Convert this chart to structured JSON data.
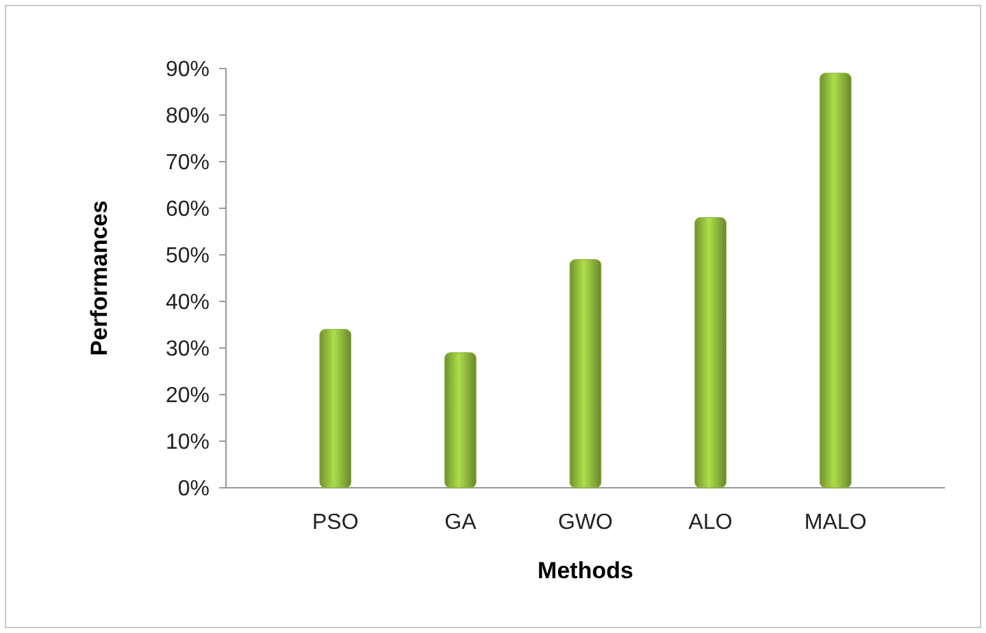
{
  "chart_data": {
    "type": "bar",
    "xlabel": "Methods",
    "ylabel": "Performances",
    "categories": [
      "PSO",
      "GA",
      "GWO",
      "ALO",
      "MALO"
    ],
    "values": [
      34,
      29,
      49,
      58,
      89
    ],
    "color": "#8cb33c",
    "ylim": [
      0,
      90
    ],
    "yticks": [
      {
        "value": 0,
        "label": "0%"
      },
      {
        "value": 10,
        "label": "10%"
      },
      {
        "value": 20,
        "label": "20%"
      },
      {
        "value": 30,
        "label": "30%"
      },
      {
        "value": 40,
        "label": "40%"
      },
      {
        "value": 50,
        "label": "50%"
      },
      {
        "value": 60,
        "label": "60%"
      },
      {
        "value": 70,
        "label": "70%"
      },
      {
        "value": 80,
        "label": "80%"
      },
      {
        "value": 90,
        "label": "90%"
      }
    ],
    "grid": false
  }
}
